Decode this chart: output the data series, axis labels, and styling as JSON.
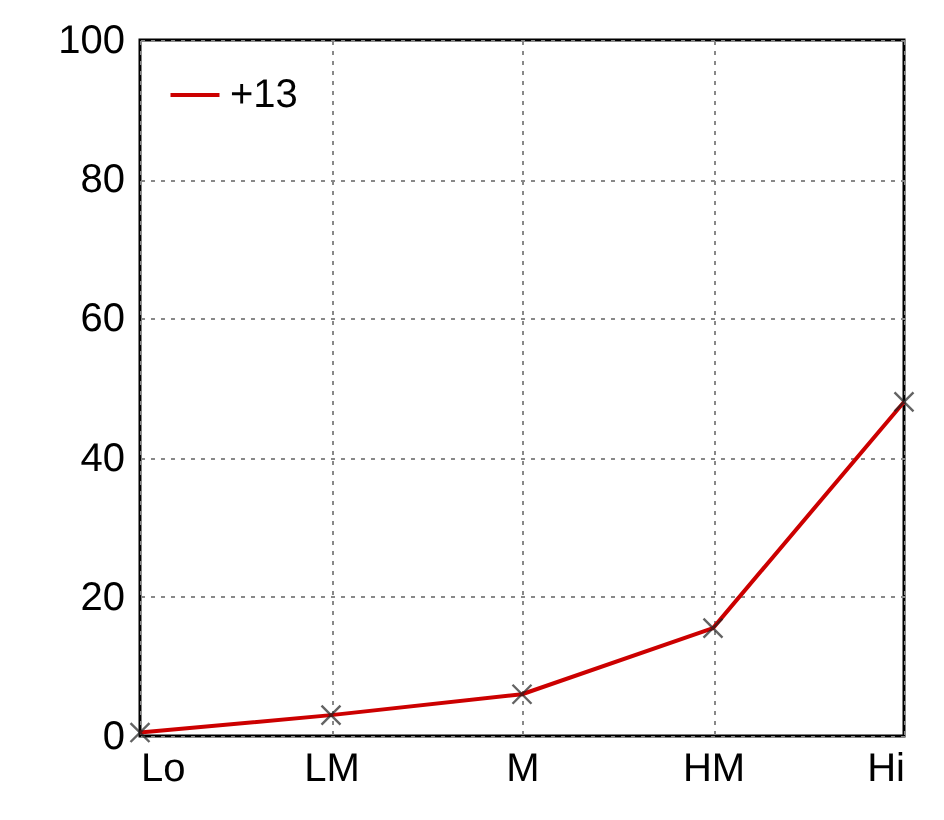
{
  "chart_data": {
    "type": "line",
    "categories": [
      "Lo",
      "LM",
      "M",
      "HM",
      "Hi"
    ],
    "series": [
      {
        "name": "+13",
        "color": "#cc0000",
        "values": [
          0.5,
          3,
          6,
          15.5,
          48
        ]
      }
    ],
    "ylim": [
      0,
      100
    ],
    "yticks": [
      0,
      20,
      40,
      60,
      80,
      100
    ],
    "grid": true,
    "legend": "top left",
    "marker": "cross",
    "line_style": "solid"
  }
}
